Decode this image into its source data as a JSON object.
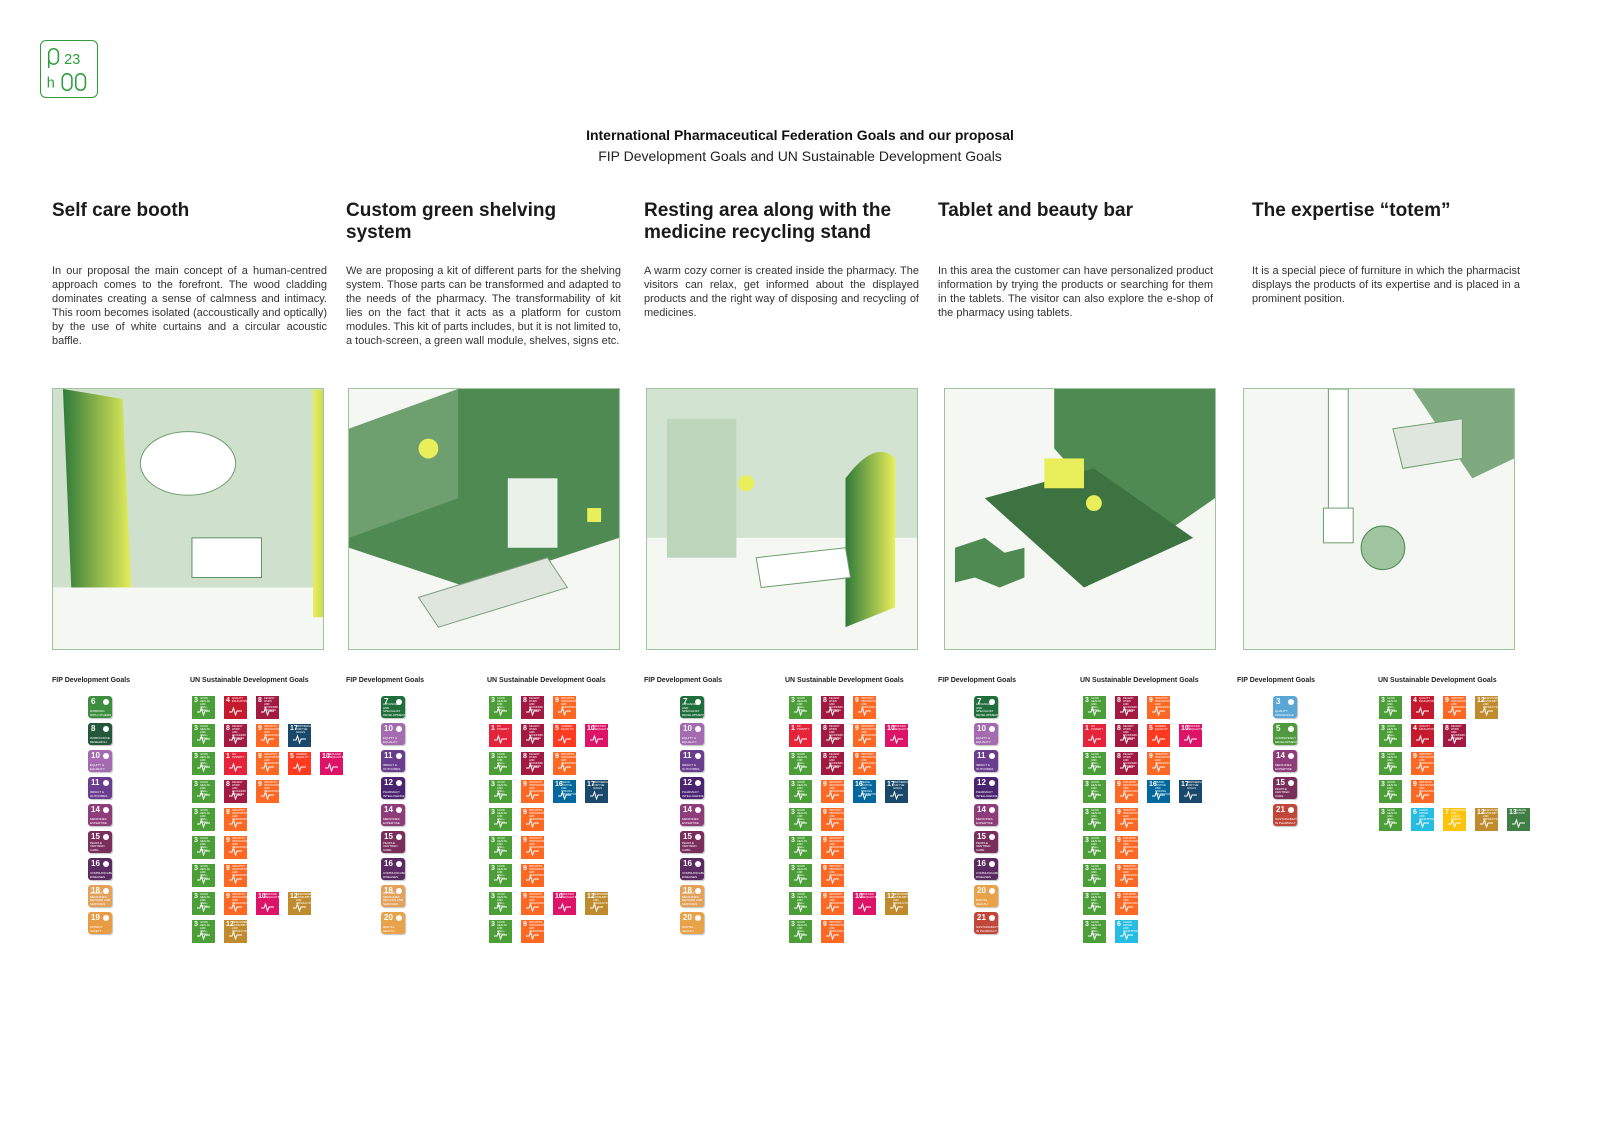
{
  "logo": {
    "text_top": "23",
    "text_bottom": "h",
    "color": "#2e9c3a"
  },
  "title": "International Pharmaceutical Federation Goals and our proposal",
  "subtitle": "FIP Development Goals and UN Sustainable Development Goals",
  "labels": {
    "fip": "FIP Development Goals",
    "un": "UN Sustainable Development Goals"
  },
  "fip_goal_names": {
    "3": "Quality assurance",
    "5": "Competency development",
    "6": "Working with others",
    "7": "Advanced and specialist development",
    "8": "Workforce research",
    "10": "Equity & equality",
    "11": "Impact & outcomes",
    "12": "Pharmacy intelligence",
    "14": "Medicines expertise",
    "15": "People centred care",
    "16": "Communicable diseases",
    "18": "Access to medicines, devices and services",
    "19": "Patient safety",
    "20": "Digital health",
    "21": "Sustainability in pharmacy"
  },
  "fip_colors": {
    "3": "#5aa7d6",
    "5": "#4e9a3c",
    "6": "#3d8e3e",
    "7": "#1f6e3b",
    "8": "#25583a",
    "10": "#a46bb0",
    "11": "#6a3d8f",
    "12": "#4a2470",
    "14": "#8f3c7a",
    "15": "#7a2e5c",
    "16": "#5c2a63",
    "18": "#e3a15a",
    "19": "#e89c44",
    "20": "#e8a24a",
    "21": "#c0473a"
  },
  "sdg_names": {
    "1": "No poverty",
    "3": "Good health and well-being",
    "4": "Quality education",
    "5": "Gender equality",
    "6": "Clean water and sanitation",
    "7": "Affordable and clean energy",
    "8": "Decent work and economic growth",
    "9": "Industry, innovation and infrastructure",
    "10": "Reduced inequalities",
    "12": "Responsible consumption and production",
    "13": "Climate action",
    "16": "Peace, justice and strong institutions",
    "17": "Partnerships for the goals"
  },
  "sdg_colors": {
    "1": "#e5243b",
    "3": "#4c9f38",
    "4": "#c5192d",
    "5": "#ff3a21",
    "6": "#26bde2",
    "7": "#fcc30b",
    "8": "#a21942",
    "9": "#fd6925",
    "10": "#dd1367",
    "12": "#bf8b2e",
    "13": "#3f7e44",
    "16": "#00689d",
    "17": "#19486a"
  },
  "columns": [
    {
      "heading": "Self care booth",
      "text": "In our proposal the main concept of a human-centred approach comes to the forefront.  The wood cladding dominates creating a sense of calmness and intimacy. This room becomes isolated (accoustically and optically) by the use of white curtains and a circular acoustic baffle.",
      "fip": [
        "6",
        "8",
        "10",
        "11",
        "14",
        "15",
        "16",
        "18",
        "19"
      ],
      "un": [
        [
          "3",
          "4",
          "8"
        ],
        [
          "3",
          "8",
          "9",
          "17"
        ],
        [
          "3",
          "1",
          "9",
          "5",
          "10"
        ],
        [
          "3",
          "8",
          "9"
        ],
        [
          "3",
          "9"
        ],
        [
          "3",
          "9"
        ],
        [
          "3",
          "9"
        ],
        [
          "3",
          "9",
          "10",
          "12"
        ],
        [
          "3",
          "12"
        ]
      ]
    },
    {
      "heading": "Custom green shelving system",
      "text": "We are proposing a kit of different parts for the shelving system. Those parts can be transformed and adapted to the needs of the pharmacy. The transformability of kit lies on the fact that it acts as a platform for custom modules. This kit of parts includes, but it is not limited to, a touch-screen, a green wall module, shelves, signs etc.",
      "fip": [
        "7",
        "10",
        "11",
        "12",
        "14",
        "15",
        "16",
        "18",
        "20"
      ],
      "un": [
        [
          "3",
          "8",
          "9"
        ],
        [
          "1",
          "8",
          "5",
          "10"
        ],
        [
          "3",
          "8",
          "9"
        ],
        [
          "3",
          "9",
          "16",
          "17"
        ],
        [
          "3",
          "9"
        ],
        [
          "3",
          "9"
        ],
        [
          "3",
          "9"
        ],
        [
          "3",
          "9",
          "10",
          "12"
        ],
        [
          "3",
          "9"
        ]
      ]
    },
    {
      "heading": "Resting area along with the medicine recycling stand",
      "text": "A warm cozy corner is created inside the pharmacy. The visitors can relax, get informed about the displayed products and the right way of disposing and recycling of medicines.",
      "fip": [
        "7",
        "10",
        "11",
        "12",
        "14",
        "15",
        "16",
        "18",
        "20"
      ],
      "un": [
        [
          "3",
          "8",
          "9"
        ],
        [
          "1",
          "8",
          "9",
          "10"
        ],
        [
          "3",
          "8",
          "9"
        ],
        [
          "3",
          "9",
          "16",
          "17"
        ],
        [
          "3",
          "9"
        ],
        [
          "3",
          "9"
        ],
        [
          "3",
          "9"
        ],
        [
          "3",
          "9",
          "10",
          "12"
        ],
        [
          "3",
          "9"
        ]
      ]
    },
    {
      "heading": "Tablet and beauty bar",
      "text": "In this area the customer can have personalized product information by trying the products or searching for them in the tablets. The visitor can also explore the e-shop of the pharmacy using tablets.",
      "fip": [
        "7",
        "10",
        "11",
        "12",
        "14",
        "15",
        "16",
        "20",
        "21"
      ],
      "un": [
        [
          "3",
          "8",
          "9"
        ],
        [
          "1",
          "8",
          "5",
          "10"
        ],
        [
          "3",
          "8",
          "9"
        ],
        [
          "3",
          "9",
          "16",
          "17"
        ],
        [
          "3",
          "9"
        ],
        [
          "3",
          "9"
        ],
        [
          "3",
          "9"
        ],
        [
          "3",
          "9"
        ],
        [
          "3",
          "6"
        ]
      ]
    },
    {
      "heading": "The expertise “totem”",
      "text": "It is a special piece of furniture in which the pharmacist displays the products of its expertise and is placed in a prominent position.",
      "fip": [
        "3",
        "5",
        "14",
        "15",
        "21"
      ],
      "un": [
        [
          "3",
          "4",
          "9",
          "12"
        ],
        [
          "3",
          "4",
          "8"
        ],
        [
          "3",
          "9"
        ],
        [
          "3",
          "9"
        ],
        [
          "3",
          "6",
          "7",
          "12",
          "13"
        ]
      ]
    }
  ]
}
